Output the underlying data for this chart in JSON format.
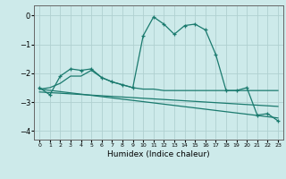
{
  "xlabel": "Humidex (Indice chaleur)",
  "xlim": [
    -0.5,
    23.5
  ],
  "ylim": [
    -4.3,
    0.35
  ],
  "yticks": [
    0,
    -1,
    -2,
    -3,
    -4
  ],
  "xticks": [
    0,
    1,
    2,
    3,
    4,
    5,
    6,
    7,
    8,
    9,
    10,
    11,
    12,
    13,
    14,
    15,
    16,
    17,
    18,
    19,
    20,
    21,
    22,
    23
  ],
  "bg_color": "#cdeaea",
  "line_color": "#1a7a6e",
  "grid_color": "#b0d0d0",
  "line1_x": [
    0,
    1,
    2,
    3,
    4,
    5,
    6,
    7,
    8,
    9,
    10,
    11,
    12,
    13,
    14,
    15,
    16,
    17,
    18,
    19,
    20,
    21,
    22,
    23
  ],
  "line1_y": [
    -2.5,
    -2.75,
    -2.1,
    -1.85,
    -1.9,
    -1.85,
    -2.15,
    -2.3,
    -2.4,
    -2.5,
    -0.7,
    -0.05,
    -0.3,
    -0.65,
    -0.35,
    -0.3,
    -0.5,
    -1.35,
    -2.6,
    -2.6,
    -2.5,
    -3.45,
    -3.4,
    -3.65
  ],
  "line2_x": [
    0,
    1,
    2,
    3,
    4,
    5,
    6,
    7,
    8,
    9,
    10,
    11,
    12,
    13,
    14,
    15,
    16,
    17,
    18,
    19,
    20,
    21,
    22,
    23
  ],
  "line2_y": [
    -2.55,
    -2.5,
    -2.35,
    -2.1,
    -2.1,
    -1.9,
    -2.15,
    -2.3,
    -2.4,
    -2.5,
    -2.55,
    -2.55,
    -2.6,
    -2.6,
    -2.6,
    -2.6,
    -2.6,
    -2.6,
    -2.6,
    -2.6,
    -2.6,
    -2.6,
    -2.6,
    -2.6
  ],
  "line3_x": [
    0,
    23
  ],
  "line3_y": [
    -2.55,
    -3.55
  ],
  "line4_x": [
    0,
    23
  ],
  "line4_y": [
    -2.65,
    -3.15
  ]
}
